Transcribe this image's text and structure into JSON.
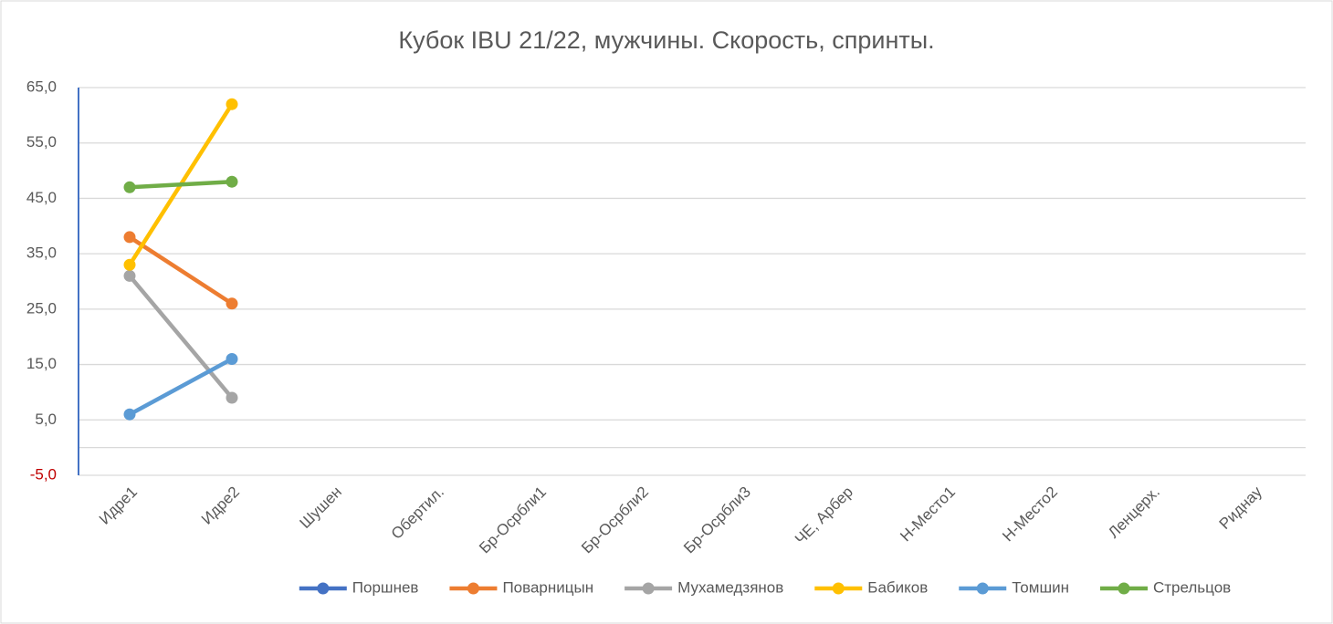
{
  "chart_data": {
    "type": "line",
    "title": "Кубок IBU 21/22, мужчины. Скорость,  спринты.",
    "categories": [
      "Идре1",
      "Идре2",
      "Шушен",
      "Обертил.",
      "Бр-Осрбли1",
      "Бр-Осрбли2",
      "Бр-Осрбли3",
      "ЧЕ, Арбер",
      "Н-Место1",
      "Н-Место2",
      "Ленцерх.",
      "Риднау"
    ],
    "series": [
      {
        "name": "Поршнев",
        "color": "#4472c4",
        "values": [
          null,
          null,
          null,
          null,
          null,
          null,
          null,
          null,
          null,
          null,
          null,
          null
        ]
      },
      {
        "name": "Поварницын",
        "color": "#ed7d31",
        "values": [
          38,
          26,
          null,
          null,
          null,
          null,
          null,
          null,
          null,
          null,
          null,
          null
        ]
      },
      {
        "name": "Мухамедзянов",
        "color": "#a5a5a5",
        "values": [
          31,
          9,
          null,
          null,
          null,
          null,
          null,
          null,
          null,
          null,
          null,
          null
        ]
      },
      {
        "name": "Бабиков",
        "color": "#ffc000",
        "values": [
          33,
          62,
          null,
          null,
          null,
          null,
          null,
          null,
          null,
          null,
          null,
          null
        ]
      },
      {
        "name": "Томшин",
        "color": "#5b9bd5",
        "values": [
          6,
          16,
          null,
          null,
          null,
          null,
          null,
          null,
          null,
          null,
          null,
          null
        ]
      },
      {
        "name": "Стрельцов",
        "color": "#70ad47",
        "values": [
          47,
          48,
          null,
          null,
          null,
          null,
          null,
          null,
          null,
          null,
          null,
          null
        ]
      }
    ],
    "ylim": [
      -5,
      65
    ],
    "yticks": [
      {
        "value": -5,
        "label": "-5,0"
      },
      {
        "value": 5,
        "label": "5,0"
      },
      {
        "value": 15,
        "label": "15,0"
      },
      {
        "value": 25,
        "label": "25,0"
      },
      {
        "value": 35,
        "label": "35,0"
      },
      {
        "value": 45,
        "label": "45,0"
      },
      {
        "value": 55,
        "label": "55,0"
      },
      {
        "value": 65,
        "label": "65,0"
      }
    ],
    "grid": true,
    "negative_tick_color": "#c00000",
    "axis_color": "#4472c4",
    "legend": "bottom"
  }
}
